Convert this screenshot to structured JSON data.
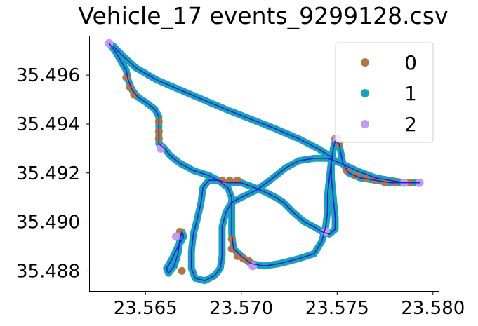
{
  "chart_data": {
    "type": "scatter",
    "title": "Vehicle_17 events_9299128.csv",
    "xlabel": "",
    "ylabel": "",
    "xlim": [
      23.5621,
      23.5803
    ],
    "ylim": [
      35.48718,
      35.49758
    ],
    "x_ticks": [
      {
        "value": 23.565,
        "label": "23.565"
      },
      {
        "value": 23.57,
        "label": "23.570"
      },
      {
        "value": 23.575,
        "label": "23.575"
      },
      {
        "value": 23.58,
        "label": "23.580"
      }
    ],
    "y_ticks": [
      {
        "value": 35.488,
        "label": "35.488"
      },
      {
        "value": 35.49,
        "label": "35.490"
      },
      {
        "value": 35.492,
        "label": "35.492"
      },
      {
        "value": 35.494,
        "label": "35.494"
      },
      {
        "value": 35.496,
        "label": "35.496"
      }
    ],
    "legend": {
      "placement": "top-right",
      "entries": [
        {
          "label": "0",
          "color": "#b07840"
        },
        {
          "label": "1",
          "color": "#1aa3b8"
        },
        {
          "label": "2",
          "color": "#c39bef"
        }
      ]
    },
    "line_color": "#2020e0",
    "grid": false,
    "route": [
      [
        23.5631,
        35.4973
      ],
      [
        23.5634,
        35.497
      ],
      [
        23.5637,
        35.4966
      ],
      [
        23.564,
        35.4962
      ],
      [
        23.5641,
        35.4958
      ],
      [
        23.5643,
        35.4954
      ],
      [
        23.5646,
        35.4951
      ],
      [
        23.565,
        35.4949
      ],
      [
        23.5655,
        35.4946
      ],
      [
        23.5657,
        35.4943
      ],
      [
        23.5657,
        35.4939
      ],
      [
        23.5657,
        35.4935
      ],
      [
        23.5657,
        35.4932
      ],
      [
        23.566,
        35.493
      ],
      [
        23.5663,
        35.4927
      ],
      [
        23.5668,
        35.4924
      ],
      [
        23.5675,
        35.4921
      ],
      [
        23.5683,
        35.4919
      ],
      [
        23.5688,
        35.4917
      ],
      [
        23.5693,
        35.4916
      ],
      [
        23.57,
        35.4916
      ],
      [
        23.5707,
        35.4914
      ],
      [
        23.5713,
        35.4912
      ],
      [
        23.5718,
        35.491
      ],
      [
        23.5722,
        35.4908
      ],
      [
        23.5727,
        35.4904
      ],
      [
        23.5733,
        35.49
      ],
      [
        23.5738,
        35.4898
      ],
      [
        23.5742,
        35.4896
      ],
      [
        23.5746,
        35.4895
      ],
      [
        23.5749,
        35.4897
      ],
      [
        23.5749,
        35.4902
      ],
      [
        23.5748,
        35.491
      ],
      [
        23.5747,
        35.4918
      ],
      [
        23.5747,
        35.4925
      ],
      [
        23.5748,
        35.493
      ],
      [
        23.5749,
        35.4933
      ],
      [
        23.5751,
        35.4932
      ],
      [
        23.5752,
        35.4928
      ],
      [
        23.5753,
        35.4924
      ],
      [
        23.5756,
        35.492
      ],
      [
        23.5762,
        35.4918
      ],
      [
        23.577,
        35.4917
      ],
      [
        23.5778,
        35.4916
      ],
      [
        23.5785,
        35.4916
      ],
      [
        23.5793,
        35.4916
      ],
      [
        23.5785,
        35.4916
      ],
      [
        23.577,
        35.4918
      ],
      [
        23.576,
        35.4921
      ],
      [
        23.5752,
        35.4924
      ],
      [
        23.5745,
        35.4926
      ],
      [
        23.5738,
        35.4926
      ],
      [
        23.573,
        35.4925
      ],
      [
        23.5723,
        35.4922
      ],
      [
        23.5715,
        35.4917
      ],
      [
        23.5708,
        35.4913
      ],
      [
        23.57,
        35.491
      ],
      [
        23.5695,
        35.4908
      ],
      [
        23.5692,
        35.4904
      ],
      [
        23.569,
        35.4898
      ],
      [
        23.569,
        35.4892
      ],
      [
        23.569,
        35.4886
      ],
      [
        23.5689,
        35.4881
      ],
      [
        23.5686,
        35.4878
      ],
      [
        23.5681,
        35.4876
      ],
      [
        23.5676,
        35.4877
      ],
      [
        23.5674,
        35.4881
      ],
      [
        23.5674,
        35.4888
      ],
      [
        23.5675,
        35.4895
      ],
      [
        23.5677,
        35.4901
      ],
      [
        23.5679,
        35.4908
      ],
      [
        23.568,
        35.4914
      ],
      [
        23.5683,
        35.4917
      ],
      [
        23.5688,
        35.4917
      ],
      [
        23.5693,
        35.4914
      ],
      [
        23.5695,
        35.491
      ],
      [
        23.5695,
        35.4903
      ],
      [
        23.5695,
        35.4895
      ],
      [
        23.5696,
        35.4889
      ],
      [
        23.57,
        35.4886
      ],
      [
        23.5705,
        35.4883
      ],
      [
        23.5712,
        35.4882
      ],
      [
        23.572,
        35.4883
      ],
      [
        23.573,
        35.4885
      ],
      [
        23.5738,
        35.4887
      ],
      [
        23.5742,
        35.4892
      ],
      [
        23.5744,
        35.4898
      ],
      [
        23.5745,
        35.4904
      ],
      [
        23.5745,
        35.4911
      ],
      [
        23.5746,
        35.4918
      ],
      [
        23.5747,
        35.4925
      ],
      [
        23.5748,
        35.4926
      ],
      [
        23.574,
        35.493
      ],
      [
        23.573,
        35.4934
      ],
      [
        23.5718,
        35.4938
      ],
      [
        23.5705,
        35.4942
      ],
      [
        23.5692,
        35.4946
      ],
      [
        23.568,
        35.495
      ],
      [
        23.5668,
        35.4954
      ],
      [
        23.5656,
        35.4958
      ],
      [
        23.5645,
        35.4963
      ],
      [
        23.5638,
        35.4968
      ],
      [
        23.5633,
        35.4972
      ]
    ],
    "loop": [
      [
        23.567,
        35.4894
      ],
      [
        23.5667,
        35.489
      ],
      [
        23.5664,
        35.4885
      ],
      [
        23.5661,
        35.4881
      ],
      [
        23.5662,
        35.4879
      ],
      [
        23.5665,
        35.4882
      ],
      [
        23.5667,
        35.4887
      ],
      [
        23.5668,
        35.4893
      ],
      [
        23.5669,
        35.4896
      ],
      [
        23.567,
        35.4894
      ]
    ],
    "events_0": [
      [
        23.564,
        35.4959
      ],
      [
        23.5642,
        35.4955
      ],
      [
        23.5644,
        35.4952
      ],
      [
        23.5657,
        35.4941
      ],
      [
        23.5657,
        35.4937
      ],
      [
        23.5657,
        35.4934
      ],
      [
        23.569,
        35.4917
      ],
      [
        23.5694,
        35.4917
      ],
      [
        23.5698,
        35.4917
      ],
      [
        23.5695,
        35.4893
      ],
      [
        23.5695,
        35.4889
      ],
      [
        23.5698,
        35.4886
      ],
      [
        23.5701,
        35.4885
      ],
      [
        23.5704,
        35.4884
      ],
      [
        23.5668,
        35.4896
      ],
      [
        23.5669,
        35.488
      ],
      [
        23.5755,
        35.4921
      ],
      [
        23.576,
        35.4919
      ],
      [
        23.5765,
        35.4918
      ],
      [
        23.577,
        35.4917
      ],
      [
        23.5775,
        35.4916
      ],
      [
        23.578,
        35.4916
      ],
      [
        23.5788,
        35.4916
      ],
      [
        23.5749,
        35.4934
      ],
      [
        23.5751,
        35.4932
      ]
    ],
    "events_2": [
      [
        23.5631,
        35.4973
      ],
      [
        23.5658,
        35.493
      ],
      [
        23.5666,
        35.4894
      ],
      [
        23.5706,
        35.4882
      ],
      [
        23.5744,
        35.4896
      ],
      [
        23.575,
        35.4934
      ],
      [
        23.5785,
        35.4916
      ],
      [
        23.5793,
        35.4916
      ]
    ]
  }
}
